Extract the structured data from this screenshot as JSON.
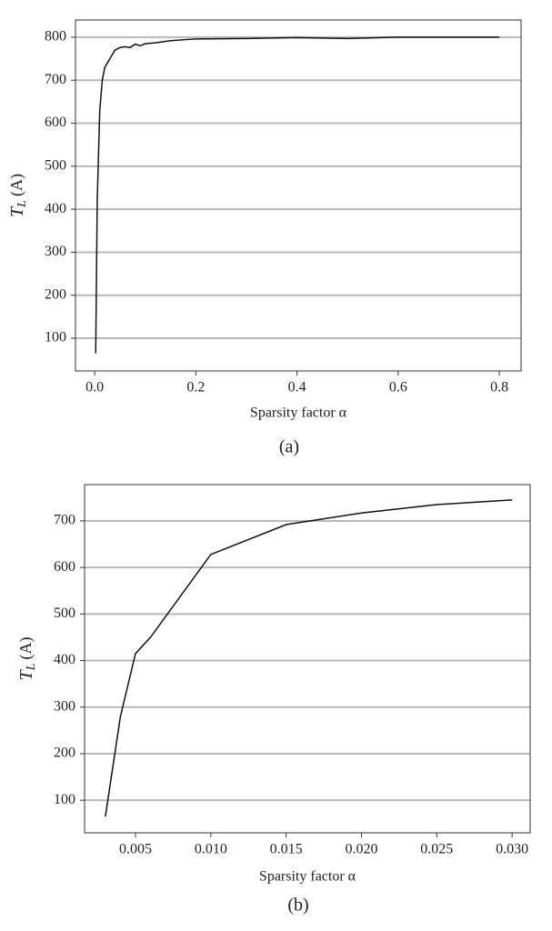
{
  "chart_data": [
    {
      "type": "line",
      "caption": "(a)",
      "x_label": "Sparsity factor α",
      "y_label": {
        "symbol": "T",
        "subscript": "L",
        "unit": "(A)"
      },
      "x": [
        0.002,
        0.005,
        0.01,
        0.015,
        0.02,
        0.03,
        0.04,
        0.05,
        0.06,
        0.07,
        0.08,
        0.09,
        0.1,
        0.12,
        0.15,
        0.2,
        0.3,
        0.4,
        0.5,
        0.6,
        0.8
      ],
      "series": [
        {
          "color": "#111111",
          "values": [
            65,
            420,
            630,
            700,
            730,
            750,
            770,
            776,
            778,
            776,
            784,
            780,
            785,
            787,
            792,
            796,
            797,
            799,
            797,
            800,
            800
          ]
        }
      ],
      "xlim": [
        -0.038,
        0.843
      ],
      "ylim": [
        24,
        840
      ],
      "xticks": [
        {
          "value": 0,
          "label": "0.0"
        },
        {
          "value": 0.2,
          "label": "0.2"
        },
        {
          "value": 0.4,
          "label": "0.4"
        },
        {
          "value": 0.6,
          "label": "0.6"
        },
        {
          "value": 0.8,
          "label": "0.8"
        }
      ],
      "yticks": [
        100,
        200,
        300,
        400,
        500,
        600,
        700,
        800
      ],
      "grid": true
    },
    {
      "type": "line",
      "caption": "(b)",
      "x_label": "Sparsity factor α",
      "y_label": {
        "symbol": "T",
        "subscript": "L",
        "unit": "(A)"
      },
      "x": [
        0.003,
        0.004,
        0.005,
        0.006,
        0.01,
        0.015,
        0.02,
        0.025,
        0.03
      ],
      "series": [
        {
          "color": "#111111",
          "values": [
            65,
            280,
            415,
            450,
            628,
            692,
            717,
            735,
            745
          ]
        }
      ],
      "xlim": [
        0.00162,
        0.0312
      ],
      "ylim": [
        30,
        778
      ],
      "xticks": [
        {
          "value": 0.005,
          "label": "0.005"
        },
        {
          "value": 0.01,
          "label": "0.010"
        },
        {
          "value": 0.015,
          "label": "0.015"
        },
        {
          "value": 0.02,
          "label": "0.020"
        },
        {
          "value": 0.025,
          "label": "0.025"
        },
        {
          "value": 0.03,
          "label": "0.030"
        }
      ],
      "yticks": [
        100,
        200,
        300,
        400,
        500,
        600,
        700
      ],
      "grid": true
    }
  ]
}
